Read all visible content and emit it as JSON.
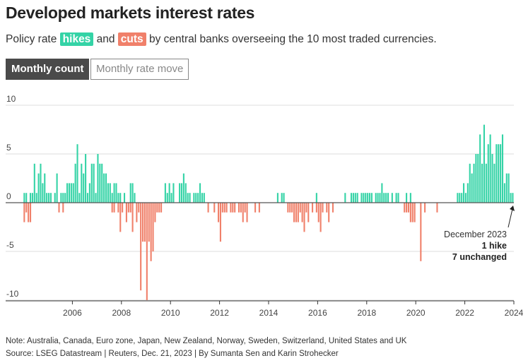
{
  "title": "Developed markets interest rates",
  "subtitle": {
    "pre": "Policy rate ",
    "hikes": "hikes",
    "mid": " and ",
    "cuts": "cuts",
    "post": " by central banks overseeing the 10 most traded currencies."
  },
  "toggle": {
    "active": "Monthly count",
    "inactive": "Monthly rate move"
  },
  "colors": {
    "hike": "#34d3a6",
    "cut": "#f0806a",
    "active_button": "#4a4a4a"
  },
  "annotation": {
    "date": "December 2023",
    "line1": "1 hike",
    "line2": "7 unchanged"
  },
  "note": "Note: Australia, Canada, Euro zone, Japan, New Zealand, Norway, Sweden, Switzerland, United States and UK",
  "source": "Source: LSEG Datastream | Reuters, Dec. 21, 2023 | By Sumanta Sen and Karin Strohecker",
  "chart_data": {
    "type": "bar",
    "frequency": "monthly",
    "x_start": "2004-01",
    "x_end": "2023-12",
    "xticks": [
      "2006",
      "2008",
      "2010",
      "2012",
      "2014",
      "2016",
      "2018",
      "2020",
      "2022",
      "2024"
    ],
    "yticks": [
      "10",
      "5",
      "0",
      "-5",
      "-10"
    ],
    "ylim": [
      -10,
      10
    ],
    "grid": true,
    "series": [
      {
        "name": "hikes",
        "values": [
          1,
          1,
          0,
          1,
          1,
          4,
          1,
          3,
          4,
          2,
          3,
          1,
          1,
          1,
          0,
          1,
          3,
          0,
          1,
          1,
          1,
          2,
          2,
          2,
          2,
          4,
          6,
          1,
          4,
          3,
          5,
          1,
          2,
          4,
          4,
          1,
          5,
          4,
          4,
          3,
          3,
          2,
          2,
          1,
          2,
          2,
          1,
          1,
          0,
          1,
          0,
          0,
          2,
          2,
          1,
          0,
          0,
          0,
          0,
          0,
          0,
          0,
          0,
          0,
          0,
          0,
          0,
          0,
          0,
          2,
          1,
          2,
          1,
          2,
          0,
          0,
          2,
          2,
          3,
          2,
          1,
          1,
          0,
          1,
          1,
          1,
          2,
          1,
          1,
          0,
          0,
          0,
          0,
          0,
          0,
          0,
          0,
          0,
          0,
          0,
          0,
          0,
          0,
          0,
          0,
          0,
          0,
          0,
          0,
          0,
          0,
          0,
          0,
          0,
          0,
          0,
          0,
          0,
          0,
          0,
          0,
          0,
          0,
          0,
          1,
          0,
          1,
          1,
          0,
          0,
          0,
          0,
          0,
          0,
          0,
          0,
          0,
          0,
          0,
          0,
          0,
          0,
          0,
          1,
          0,
          0,
          0,
          0,
          0,
          0,
          0,
          0,
          0,
          0,
          0,
          0,
          0,
          1,
          0,
          0,
          1,
          1,
          1,
          1,
          0,
          1,
          1,
          1,
          1,
          1,
          1,
          0,
          1,
          1,
          1,
          2,
          1,
          1,
          1,
          0,
          1,
          0,
          1,
          1,
          0,
          0,
          0,
          1,
          0,
          1,
          0,
          0,
          0,
          0,
          0,
          0,
          0,
          0,
          0,
          0,
          0,
          0,
          0,
          0,
          0,
          0,
          0,
          0,
          0,
          0,
          0,
          0,
          1,
          1,
          1,
          2,
          1,
          2,
          4,
          3,
          4,
          5,
          5,
          7,
          4,
          8,
          4,
          6,
          7,
          5,
          4,
          6,
          6,
          6,
          7,
          2,
          3,
          3,
          1,
          1
        ]
      },
      {
        "name": "cuts",
        "values": [
          -2,
          -1,
          -2,
          -2,
          0,
          0,
          0,
          0,
          0,
          0,
          0,
          0,
          0,
          0,
          0,
          0,
          0,
          -1,
          0,
          -1,
          0,
          0,
          0,
          0,
          0,
          0,
          0,
          0,
          0,
          0,
          0,
          0,
          0,
          0,
          0,
          0,
          0,
          0,
          0,
          0,
          0,
          0,
          0,
          -1,
          -1,
          0,
          -1,
          -3,
          -1,
          0,
          -2,
          -1,
          -1,
          -3,
          0,
          -2,
          -1,
          -9,
          -4,
          -4,
          -10,
          -4,
          -6,
          -5,
          -2,
          -1,
          -1,
          -1,
          0,
          0,
          0,
          0,
          0,
          0,
          0,
          0,
          0,
          0,
          0,
          0,
          0,
          0,
          0,
          0,
          0,
          0,
          0,
          0,
          0,
          0,
          -1,
          0,
          0,
          -1,
          0,
          -2,
          -4,
          -1,
          -1,
          -1,
          0,
          -1,
          -1,
          -1,
          0,
          -1,
          -1,
          -2,
          -1,
          -2,
          0,
          0,
          0,
          -1,
          0,
          -1,
          0,
          0,
          0,
          0,
          0,
          0,
          0,
          0,
          0,
          0,
          0,
          0,
          0,
          -1,
          -1,
          -1,
          -2,
          -2,
          -2,
          -1,
          -2,
          -3,
          -1,
          -2,
          0,
          -1,
          0,
          -1,
          -2,
          -3,
          -1,
          0,
          -1,
          -2,
          0,
          -1,
          0,
          0,
          0,
          0,
          0,
          0,
          0,
          0,
          0,
          0,
          0,
          0,
          0,
          0,
          0,
          0,
          0,
          0,
          0,
          0,
          0,
          0,
          0,
          0,
          0,
          0,
          0,
          0,
          0,
          0,
          0,
          0,
          0,
          0,
          -1,
          -1,
          -1,
          -2,
          -2,
          -2,
          0,
          0,
          -6,
          0,
          -1,
          0,
          0,
          0,
          0,
          0,
          -1,
          0,
          0,
          0,
          0,
          0,
          0,
          0,
          0,
          0,
          0,
          0,
          0,
          0,
          0,
          0,
          0,
          0,
          0,
          0,
          0,
          0,
          0,
          0,
          0,
          0,
          0,
          0,
          0,
          0,
          0,
          0,
          0,
          0,
          0,
          0,
          0,
          0
        ]
      }
    ]
  }
}
